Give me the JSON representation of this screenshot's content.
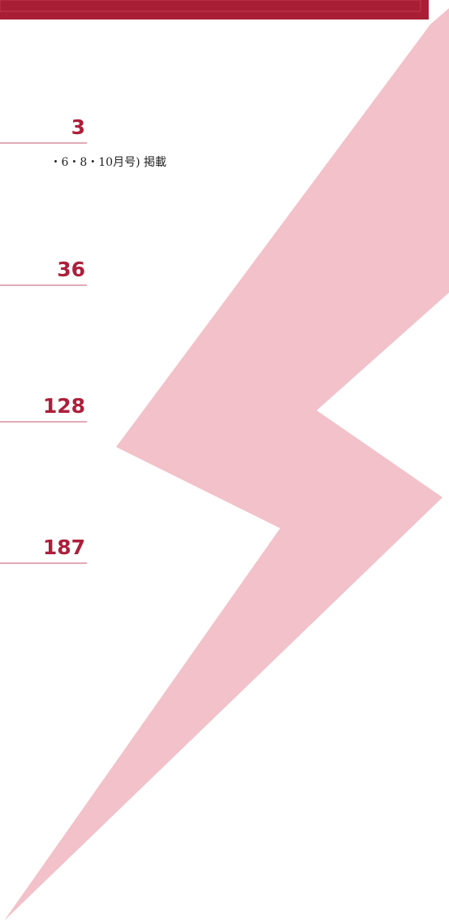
{
  "entries": [
    {
      "page": 3,
      "note": "・6・8・10月号) 掲載"
    },
    {
      "page": 36
    },
    {
      "page": 128
    },
    {
      "page": 187
    }
  ]
}
